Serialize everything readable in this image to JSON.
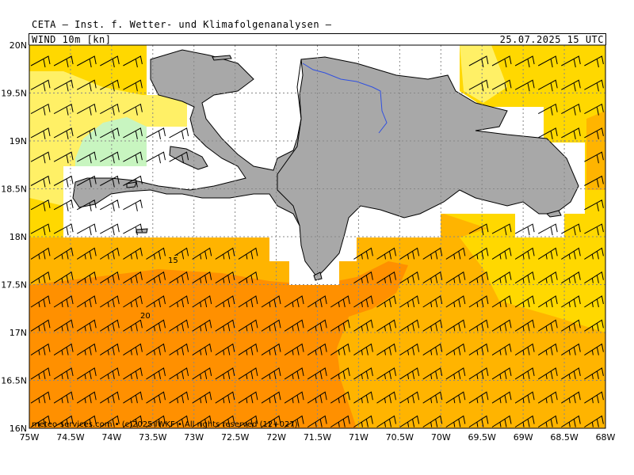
{
  "header": {
    "title": "CETA — Inst. f. Wetter- und Klimafolgenanalysen —",
    "variable": "WIND 10m [kn]",
    "valid_time": "25.07.2025 15 UTC"
  },
  "map": {
    "lon_range": [
      -75,
      -68
    ],
    "lat_range": [
      16,
      20
    ],
    "lon_ticks": [
      "75W",
      "74.5W",
      "74W",
      "73.5W",
      "73W",
      "72.5W",
      "72W",
      "71.5W",
      "71W",
      "70.5W",
      "70W",
      "69.5W",
      "69W",
      "68.5W",
      "68W"
    ],
    "lat_ticks": [
      "20N",
      "19.5N",
      "19N",
      "18.5N",
      "18N",
      "17.5N",
      "17N",
      "16.5N",
      "16N"
    ],
    "contour_labels": [
      "15",
      "20"
    ],
    "credit": "meteo-services.com • (c)2025 IWKF • All rights reserved (12+027)",
    "land_color": "#a8a8a8",
    "shading_colors": {
      "calm_green": "#c8f5c0",
      "light_yellow": "#fff066",
      "yellow": "#ffd800",
      "orange_light": "#ffb400",
      "orange": "#ff9000"
    }
  }
}
